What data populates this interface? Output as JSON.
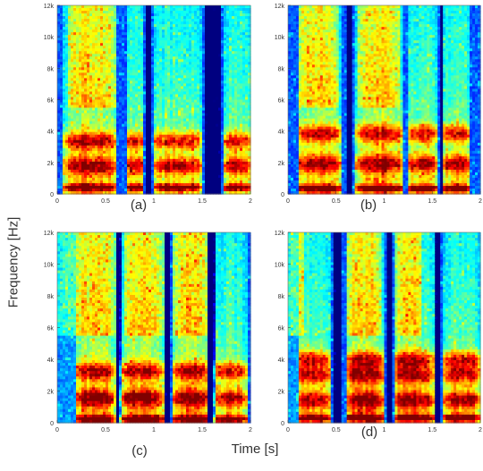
{
  "figure": {
    "ylabel": "Frequency [Hz]",
    "xlabel": "Time [s]"
  },
  "chart_data": [
    {
      "type": "heatmap",
      "panel_label": "(a)",
      "x_ticks": [
        "0",
        "0.5",
        "1",
        "1.5",
        "2"
      ],
      "y_ticks": [
        "0",
        "2k",
        "4k",
        "6k",
        "8k",
        "10k",
        "12k"
      ],
      "xlim": [
        0,
        2
      ],
      "ylim": [
        0,
        12000
      ],
      "colormap": "jet",
      "grid": false
    },
    {
      "type": "heatmap",
      "panel_label": "(b)",
      "x_ticks": [
        "0",
        "0.5",
        "1",
        "1.5",
        "2"
      ],
      "y_ticks": [
        "0",
        "2k",
        "4k",
        "6k",
        "8k",
        "10k",
        "12k"
      ],
      "xlim": [
        0,
        2
      ],
      "ylim": [
        0,
        12000
      ],
      "colormap": "jet",
      "grid": false
    },
    {
      "type": "heatmap",
      "panel_label": "(c)",
      "x_ticks": [
        "0",
        "0.5",
        "1",
        "1.5",
        "2"
      ],
      "y_ticks": [
        "0",
        "2k",
        "4k",
        "6k",
        "8k",
        "10k",
        "12k"
      ],
      "xlim": [
        0,
        2
      ],
      "ylim": [
        0,
        12000
      ],
      "colormap": "jet",
      "grid": false
    },
    {
      "type": "heatmap",
      "panel_label": "(d)",
      "x_ticks": [
        "0",
        "0.5",
        "1",
        "1.5",
        "2"
      ],
      "y_ticks": [
        "0",
        "2k",
        "4k",
        "6k",
        "8k",
        "10k",
        "12k"
      ],
      "xlim": [
        0,
        2
      ],
      "ylim": [
        0,
        12000
      ],
      "colormap": "jet",
      "grid": false
    }
  ]
}
